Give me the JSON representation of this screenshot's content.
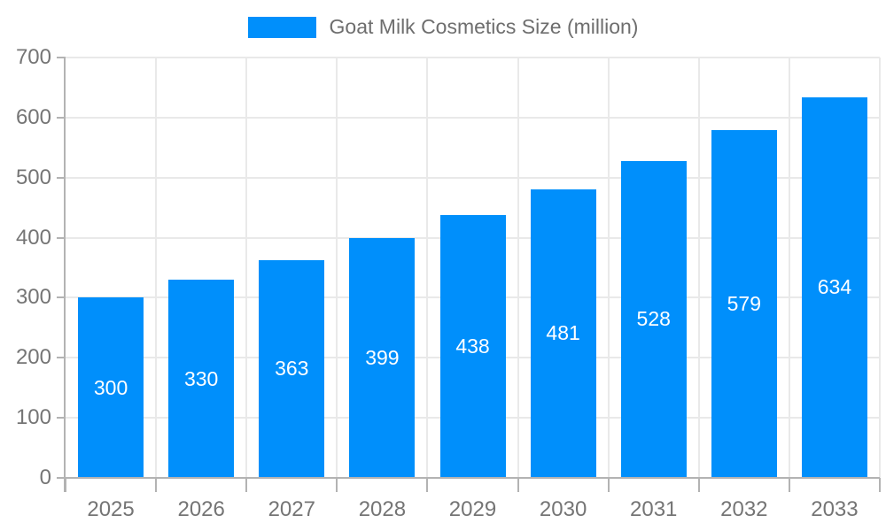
{
  "chart": {
    "legend": {
      "label": "Goat Milk Cosmetics Size (million)"
    }
  },
  "chart_data": {
    "type": "bar",
    "title": "Goat Milk Cosmetics Size (million)",
    "categories": [
      "2025",
      "2026",
      "2027",
      "2028",
      "2029",
      "2030",
      "2031",
      "2032",
      "2033"
    ],
    "series": [
      {
        "name": "Goat Milk Cosmetics Size (million)",
        "values": [
          300,
          330,
          363,
          399,
          438,
          481,
          528,
          579,
          634
        ]
      }
    ],
    "values": [
      300,
      330,
      363,
      399,
      438,
      481,
      528,
      579,
      634
    ],
    "data_labels": [
      "300",
      "330",
      "363",
      "399",
      "438",
      "481",
      "528",
      "579",
      "634"
    ],
    "xlabel": "",
    "ylabel": "",
    "ylim": [
      0,
      700
    ],
    "y_ticks": [
      0,
      100,
      200,
      300,
      400,
      500,
      600,
      700
    ],
    "grid": true,
    "legend_position": "top",
    "colors": {
      "bar": "#008FFB",
      "axis": "#b3b3b3",
      "grid": "#e9e9e9",
      "tick_text": "#757575",
      "value_label": "#ffffff",
      "background": "#ffffff"
    }
  }
}
